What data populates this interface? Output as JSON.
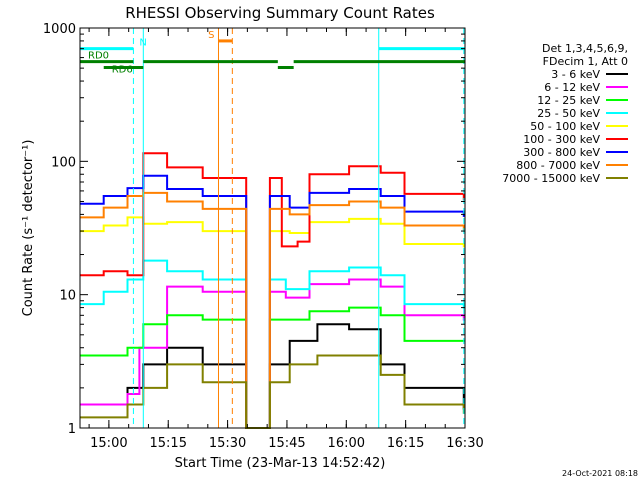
{
  "chart_data": {
    "type": "line",
    "title": "RHESSI Observing Summary Count Rates",
    "xlabel": "Start Time (23-Mar-13 14:52:42)",
    "ylabel": "Count Rate (s⁻¹ detector⁻¹)",
    "y_scale": "log",
    "ylim": [
      1,
      1000
    ],
    "xlim_minutes": [
      0,
      97.3
    ],
    "x_ticks": [
      {
        "label": "15:00",
        "minute": 7.3
      },
      {
        "label": "15:15",
        "minute": 22.3
      },
      {
        "label": "15:30",
        "minute": 37.3
      },
      {
        "label": "15:45",
        "minute": 52.3
      },
      {
        "label": "16:00",
        "minute": 67.3
      },
      {
        "label": "16:15",
        "minute": 82.3
      },
      {
        "label": "16:30",
        "minute": 97.3
      }
    ],
    "y_ticks": [
      {
        "label": "1",
        "value": 1
      },
      {
        "label": "10",
        "value": 10
      },
      {
        "label": "100",
        "value": 100
      },
      {
        "label": "1000",
        "value": 1000
      }
    ],
    "legend_header": [
      "Det 1,3,4,5,6,9,",
      "FDecim 1, Att 0"
    ],
    "series": [
      {
        "name": "3 - 6 keV",
        "color": "#000000",
        "points": [
          [
            0,
            1.5
          ],
          [
            12,
            2.0
          ],
          [
            16,
            3.0
          ],
          [
            22,
            4.0
          ],
          [
            31,
            3.0
          ],
          [
            42,
            1
          ],
          [
            48,
            3.0
          ],
          [
            53,
            4.5
          ],
          [
            60,
            6.0
          ],
          [
            68,
            5.5
          ],
          [
            76,
            3.0
          ],
          [
            82,
            2.0
          ],
          [
            97,
            1.4
          ]
        ]
      },
      {
        "name": "6 - 12 keV",
        "color": "#ff00ff",
        "points": [
          [
            0,
            1.5
          ],
          [
            12,
            1.8
          ],
          [
            15,
            4.0
          ],
          [
            22,
            11.5
          ],
          [
            31,
            10.5
          ],
          [
            42,
            1
          ],
          [
            48,
            10.5
          ],
          [
            52,
            9.5
          ],
          [
            58,
            12.0
          ],
          [
            68,
            13.0
          ],
          [
            76,
            11.5
          ],
          [
            82,
            7.0
          ],
          [
            97,
            6.5
          ]
        ]
      },
      {
        "name": "12 - 25 keV",
        "color": "#00ff00",
        "points": [
          [
            0,
            3.5
          ],
          [
            12,
            4.0
          ],
          [
            16,
            6.0
          ],
          [
            22,
            7.0
          ],
          [
            31,
            6.5
          ],
          [
            42,
            1
          ],
          [
            48,
            6.5
          ],
          [
            52,
            6.5
          ],
          [
            58,
            7.5
          ],
          [
            68,
            8.0
          ],
          [
            76,
            7.0
          ],
          [
            82,
            4.5
          ],
          [
            97,
            4.5
          ]
        ]
      },
      {
        "name": "25 - 50 keV",
        "color": "#00ffff",
        "points": [
          [
            0,
            8.5
          ],
          [
            6,
            10.5
          ],
          [
            12,
            13.0
          ],
          [
            16,
            18.0
          ],
          [
            22,
            15.0
          ],
          [
            31,
            13.0
          ],
          [
            42,
            1
          ],
          [
            48,
            13.0
          ],
          [
            52,
            11.0
          ],
          [
            58,
            15.0
          ],
          [
            68,
            16.0
          ],
          [
            76,
            14.0
          ],
          [
            82,
            8.5
          ],
          [
            97,
            8.0
          ]
        ]
      },
      {
        "name": "50 - 100 keV",
        "color": "#ffff00",
        "points": [
          [
            0,
            30
          ],
          [
            6,
            33
          ],
          [
            12,
            38
          ],
          [
            16,
            34
          ],
          [
            22,
            35
          ],
          [
            31,
            30
          ],
          [
            42,
            1
          ],
          [
            48,
            30
          ],
          [
            53,
            29
          ],
          [
            58,
            35
          ],
          [
            68,
            37
          ],
          [
            76,
            34
          ],
          [
            82,
            24
          ],
          [
            97,
            23
          ]
        ]
      },
      {
        "name": "100 - 300 keV",
        "color": "#ff0000",
        "points": [
          [
            0,
            14
          ],
          [
            6,
            15
          ],
          [
            12,
            14
          ],
          [
            16,
            115
          ],
          [
            22,
            90
          ],
          [
            31,
            75
          ],
          [
            42,
            1
          ],
          [
            48,
            75
          ],
          [
            51,
            23
          ],
          [
            55,
            25
          ],
          [
            58,
            80
          ],
          [
            68,
            92
          ],
          [
            76,
            82
          ],
          [
            82,
            57
          ],
          [
            97,
            52
          ]
        ]
      },
      {
        "name": "300 - 800 keV",
        "color": "#0000ff",
        "points": [
          [
            0,
            48
          ],
          [
            6,
            55
          ],
          [
            12,
            63
          ],
          [
            16,
            78
          ],
          [
            22,
            62
          ],
          [
            31,
            55
          ],
          [
            42,
            1
          ],
          [
            48,
            55
          ],
          [
            53,
            45
          ],
          [
            58,
            58
          ],
          [
            68,
            62
          ],
          [
            76,
            55
          ],
          [
            82,
            42
          ],
          [
            97,
            39
          ]
        ]
      },
      {
        "name": "800 - 7000 keV",
        "color": "#ff8000",
        "points": [
          [
            0,
            38
          ],
          [
            6,
            45
          ],
          [
            12,
            55
          ],
          [
            16,
            58
          ],
          [
            22,
            50
          ],
          [
            31,
            44
          ],
          [
            42,
            1
          ],
          [
            48,
            44
          ],
          [
            53,
            40
          ],
          [
            58,
            47
          ],
          [
            68,
            50
          ],
          [
            76,
            45
          ],
          [
            82,
            33
          ],
          [
            97,
            31
          ]
        ]
      },
      {
        "name": "7000 - 15000 keV",
        "color": "#808000",
        "points": [
          [
            0,
            1.2
          ],
          [
            12,
            1.5
          ],
          [
            16,
            2.0
          ],
          [
            22,
            3.0
          ],
          [
            31,
            2.2
          ],
          [
            42,
            1
          ],
          [
            48,
            2.2
          ],
          [
            53,
            3.0
          ],
          [
            60,
            3.5
          ],
          [
            68,
            3.5
          ],
          [
            76,
            2.5
          ],
          [
            82,
            1.5
          ],
          [
            97,
            1.3
          ]
        ]
      }
    ],
    "overlay_segments": [
      {
        "label": "N",
        "color": "#00ffff",
        "y": 700,
        "x_start": 0,
        "x_end": 13.5
      },
      {
        "label": "",
        "color": "#00ffff",
        "y": 700,
        "x_start": 75.5,
        "x_end": 97.3
      },
      {
        "label": "RD0",
        "color": "#008000",
        "y": 560,
        "x_start": 0,
        "x_end": 13.5
      },
      {
        "label": "",
        "color": "#008000",
        "y": 560,
        "x_start": 16,
        "x_end": 50
      },
      {
        "label": "",
        "color": "#008000",
        "y": 560,
        "x_start": 54,
        "x_end": 97.3
      },
      {
        "label": "RD6",
        "color": "#008000",
        "y": 505,
        "x_start": 6,
        "x_end": 16
      },
      {
        "label": "",
        "color": "#008000",
        "y": 505,
        "x_start": 50,
        "x_end": 54
      },
      {
        "label": "S",
        "color": "#ff8000",
        "y": 800,
        "x_start": 35,
        "x_end": 38.5
      }
    ],
    "vertical_markers": [
      {
        "minute": 13.5,
        "color": "#00ffff",
        "style": "dashed"
      },
      {
        "minute": 16,
        "color": "#00ffff",
        "style": "solid"
      },
      {
        "minute": 35,
        "color": "#ff8000",
        "style": "solid"
      },
      {
        "minute": 38.5,
        "color": "#ff8000",
        "style": "dashed"
      },
      {
        "minute": 75.5,
        "color": "#00ffff",
        "style": "solid"
      },
      {
        "minute": 97,
        "color": "#00ffff",
        "style": "dashed"
      }
    ]
  },
  "footer": {
    "timestamp": "24-Oct-2021 08:18"
  }
}
